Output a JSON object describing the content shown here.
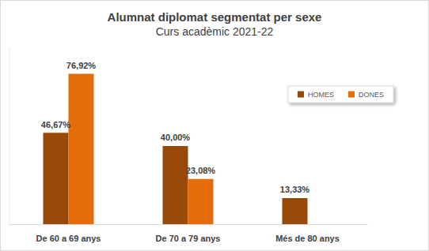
{
  "chart_data": {
    "type": "bar",
    "title": "Alumnat diplomat segmentat per sexe",
    "subtitle": "Curs acadèmic 2021-22",
    "categories": [
      "De 60 a 69 anys",
      "De 70 a 79 anys",
      "Més de 80 anys"
    ],
    "series": [
      {
        "name": "HOMES",
        "color": "#984807",
        "values": [
          46.67,
          40,
          13.33
        ],
        "value_labels": [
          "46,67%",
          "40,00%",
          "13,33%"
        ]
      },
      {
        "name": "DONES",
        "color": "#e46c0a",
        "values": [
          76.92,
          23.08,
          null
        ],
        "value_labels": [
          "76,92%",
          "23,08%",
          null
        ]
      }
    ],
    "ylim": [
      0,
      90
    ],
    "grid": false,
    "legend": "top-right",
    "data_labels": true,
    "tick_labels": "x"
  }
}
